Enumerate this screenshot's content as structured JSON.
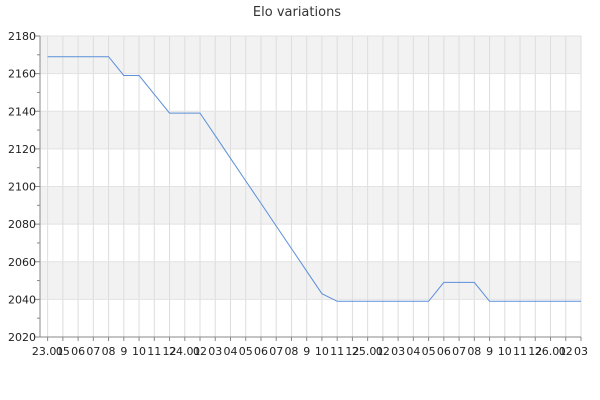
{
  "chart_data": {
    "type": "line",
    "title": "Elo variations",
    "xlabel": "",
    "ylabel": "",
    "ylim": [
      2020,
      2180
    ],
    "y_ticks": [
      2020,
      2040,
      2060,
      2080,
      2100,
      2120,
      2140,
      2160,
      2180
    ],
    "x_tick_labels": [
      "23.01",
      "05",
      "06",
      "07",
      "08",
      "9",
      "10",
      "11",
      "12",
      "24.01",
      "02",
      "03",
      "04",
      "05",
      "06",
      "07",
      "08",
      "9",
      "10",
      "11",
      "12",
      "25.01",
      "02",
      "03",
      "04",
      "05",
      "06",
      "07",
      "08",
      "9",
      "10",
      "11",
      "12",
      "26.01",
      "02",
      "03"
    ],
    "grid": true,
    "legend": "none",
    "colors": {
      "line": "#5b8fd9",
      "band": "#f2f2f2",
      "grid": "#dddddd"
    },
    "series": [
      {
        "x": [
          0,
          1,
          2,
          3,
          4,
          5,
          6,
          7,
          8,
          9,
          10,
          11,
          12,
          13,
          14,
          15,
          16,
          17,
          18,
          19,
          20,
          21,
          22,
          23,
          24,
          25,
          26,
          27,
          28,
          29,
          30,
          31,
          32,
          33,
          34,
          35
        ],
        "values": [
          2169,
          2169,
          2169,
          2169,
          2169,
          2159,
          2159,
          2149,
          2139,
          2139,
          2139,
          2127,
          2115,
          2103,
          2091,
          2079,
          2067,
          2055,
          2043,
          2039,
          2039,
          2039,
          2039,
          2039,
          2039,
          2039,
          2049,
          2049,
          2049,
          2039,
          2039,
          2039,
          2039,
          2039,
          2039,
          2039
        ]
      }
    ]
  }
}
